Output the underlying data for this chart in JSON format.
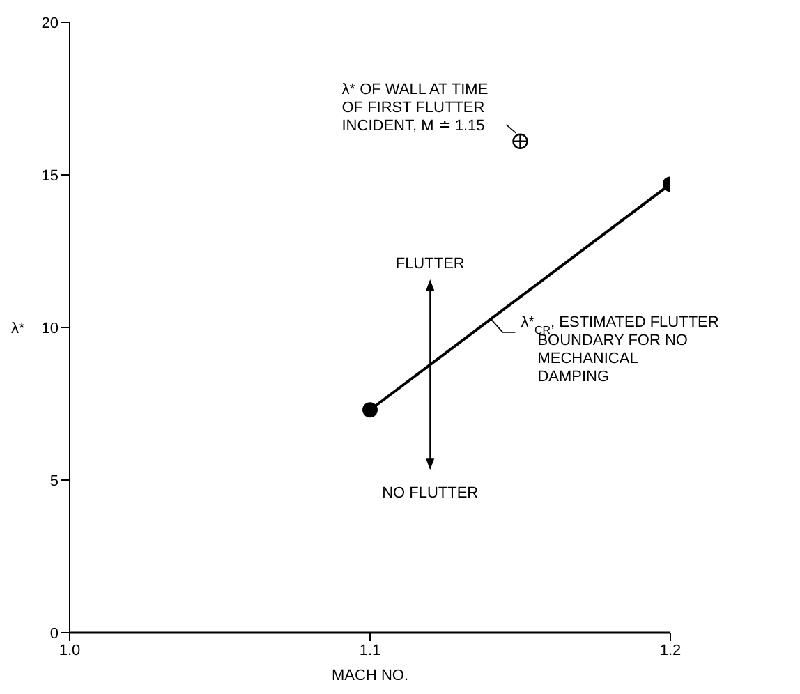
{
  "chart_data": {
    "type": "line",
    "xlabel": "MACH NO.",
    "ylabel": "λ*",
    "xlim": [
      1.0,
      1.2
    ],
    "xticks": [
      "1.0",
      1.1,
      1.2
    ],
    "ylim": [
      0,
      20
    ],
    "yticks": [
      0,
      5,
      10,
      15,
      20
    ],
    "marker": "circle",
    "line_style": "solid",
    "series": [
      {
        "color": "#000000",
        "x": [
          1.1,
          1.2
        ],
        "values": [
          7.3,
          14.7
        ]
      },
      {
        "type": "scatter",
        "color": "#000000",
        "x": [
          1.15
        ],
        "values": [
          16.1
        ]
      }
    ],
    "annotations": [
      {
        "text": "λ* OF WALL AT TIME OF FIRST FLUTTER INCIDENT, M ≐ 1.15",
        "x": 1.15,
        "y": 16.1
      },
      {
        "text": "λ*$_{CR}$, ESTIMATED FLUTTER BOUNDARY FOR NO MECHANICAL DAMPING",
        "x": 1.14,
        "y": 10.3
      },
      "FLUTTER",
      "NO FLUTTER"
    ]
  }
}
